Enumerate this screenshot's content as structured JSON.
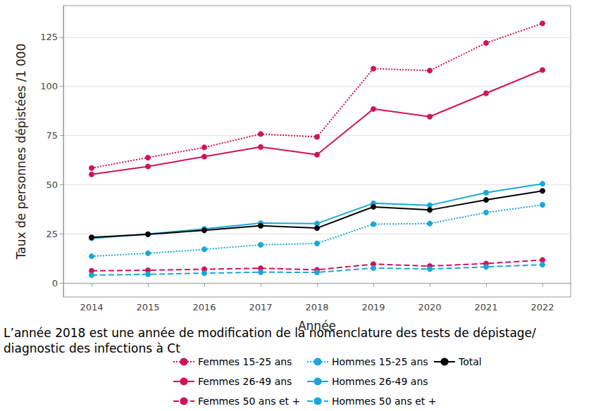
{
  "chart_data": {
    "type": "line",
    "x_label": "Année",
    "y_label": "Taux de personnes dépistées /1 000",
    "annotations": [
      "L’année 2018 est une année de modification de la nomenclature des tests de dépistage/ diagnostic des infections à Ct"
    ],
    "categories": [
      "2014",
      "2015",
      "2016",
      "2017",
      "2018",
      "2019",
      "2020",
      "2021",
      "2022"
    ],
    "ylim": [
      -7,
      141
    ],
    "yticks": [
      0,
      25,
      50,
      75,
      100,
      125
    ],
    "grid": true,
    "legend": "bottom",
    "marker": "circle",
    "series": [
      {
        "name": "Femmes 15-25 ans",
        "color": "#d1135a",
        "line_style": "dotted",
        "values": [
          58.5,
          63.8,
          69.0,
          75.8,
          74.3,
          109.0,
          108.0,
          122.0,
          132.0
        ]
      },
      {
        "name": "Femmes 26-49 ans",
        "color": "#d1135a",
        "line_style": "solid",
        "values": [
          55.3,
          59.3,
          64.3,
          69.2,
          65.3,
          88.5,
          84.6,
          96.5,
          108.3
        ]
      },
      {
        "name": "Femmes 50 ans et +",
        "color": "#d1135a",
        "line_style": "dashed",
        "values": [
          6.3,
          6.6,
          7.1,
          7.6,
          6.8,
          9.7,
          8.7,
          10.0,
          11.8
        ]
      },
      {
        "name": "Hommes 15-25 ans",
        "color": "#1aa7d8",
        "line_style": "dotted",
        "values": [
          13.7,
          15.2,
          17.2,
          19.5,
          20.2,
          30.0,
          30.3,
          35.9,
          39.8
        ]
      },
      {
        "name": "Hommes 26-49 ans",
        "color": "#1aa7d8",
        "line_style": "solid",
        "values": [
          22.8,
          25.0,
          27.6,
          30.5,
          30.3,
          40.6,
          39.6,
          46.0,
          50.5
        ]
      },
      {
        "name": "Hommes 50 ans et +",
        "color": "#1aa7d8",
        "line_style": "dashed",
        "values": [
          4.1,
          4.5,
          5.1,
          5.6,
          5.5,
          7.7,
          7.2,
          8.3,
          9.4
        ]
      },
      {
        "name": "Total",
        "color": "#000000",
        "line_style": "solid",
        "values": [
          23.3,
          24.8,
          26.9,
          29.2,
          28.0,
          38.8,
          37.2,
          42.3,
          46.9
        ]
      }
    ]
  }
}
